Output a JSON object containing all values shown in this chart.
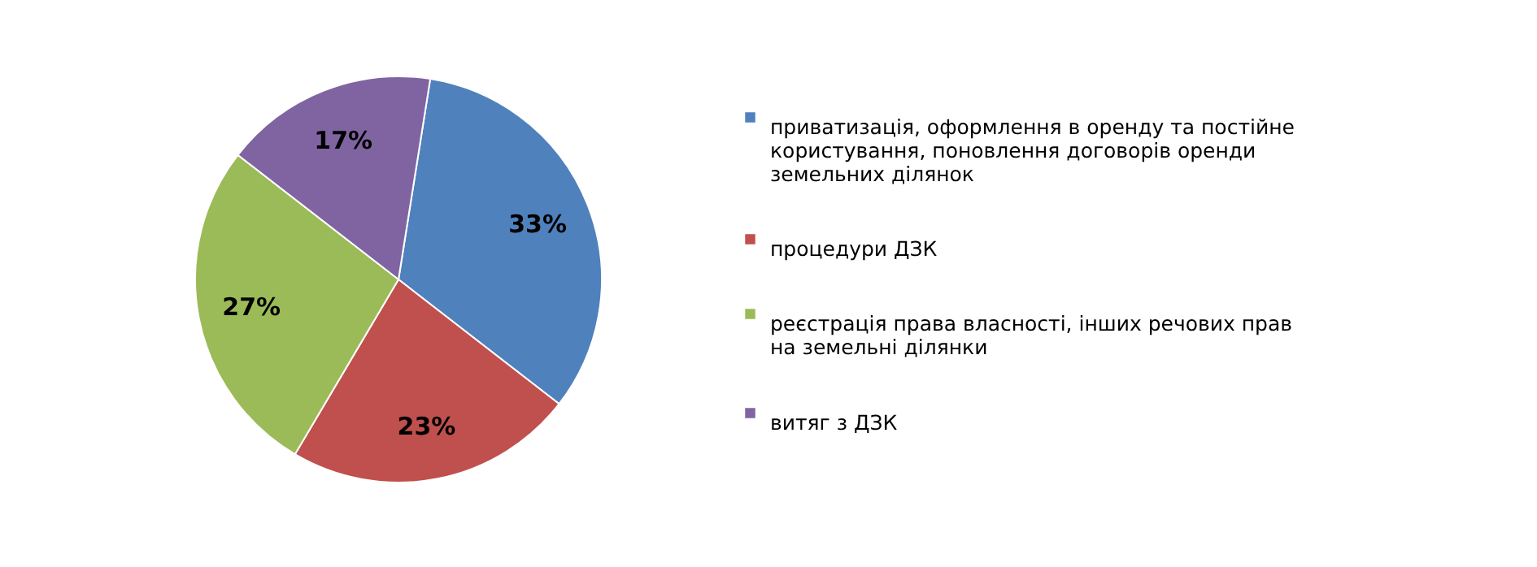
{
  "chart_data": {
    "type": "pie",
    "categories": [
      "приватизація, оформлення в оренду та постійне користування, поновлення договорів оренди земельних ділянок",
      "процедури ДЗК",
      "реєстрація права власності, інших речових прав на земельні ділянки",
      "витяг з ДЗК"
    ],
    "values": [
      33,
      23,
      27,
      17
    ],
    "colors": [
      "#4f81bd",
      "#c0504d",
      "#9bbb59",
      "#8064a2"
    ],
    "value_labels": [
      "33%",
      "23%",
      "27%",
      "17%"
    ],
    "legend": "right"
  }
}
